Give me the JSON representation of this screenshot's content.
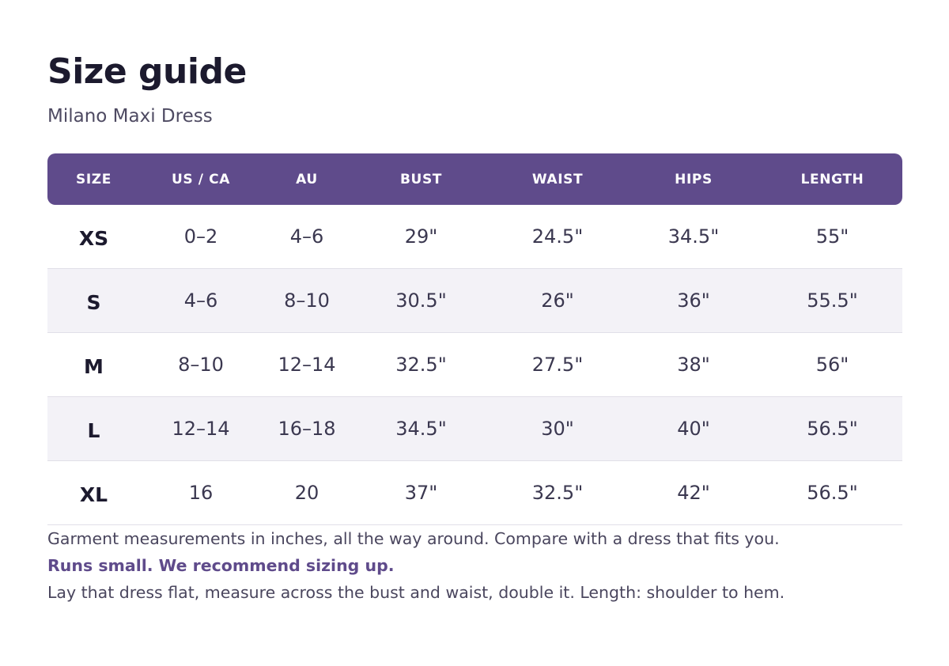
{
  "title": "Size guide",
  "subtitle": "Milano Maxi Dress",
  "colors": {
    "accent": "#5f4b8b",
    "header_text": "#ffffff",
    "stripe": "#f3f2f7",
    "title": "#1c1a2e"
  },
  "table": {
    "headers": [
      "SIZE",
      "US / CA",
      "AU",
      "BUST",
      "WAIST",
      "HIPS",
      "LENGTH"
    ],
    "rows": [
      [
        "XS",
        "0–2",
        "4–6",
        "29\"",
        "24.5\"",
        "34.5\"",
        "55\""
      ],
      [
        "S",
        "4–6",
        "8–10",
        "30.5\"",
        "26\"",
        "36\"",
        "55.5\""
      ],
      [
        "M",
        "8–10",
        "12–14",
        "32.5\"",
        "27.5\"",
        "38\"",
        "56\""
      ],
      [
        "L",
        "12–14",
        "16–18",
        "34.5\"",
        "30\"",
        "40\"",
        "56.5\""
      ],
      [
        "XL",
        "16",
        "20",
        "37\"",
        "32.5\"",
        "42\"",
        "56.5\""
      ]
    ]
  },
  "notes": {
    "measurements": "Garment measurements in inches, all the way around. Compare with a dress that fits you.",
    "fit_advice": "Runs small. We recommend sizing up.",
    "how_to_measure": "Lay that dress flat, measure across the bust and waist, double it.  Length: shoulder to hem."
  }
}
